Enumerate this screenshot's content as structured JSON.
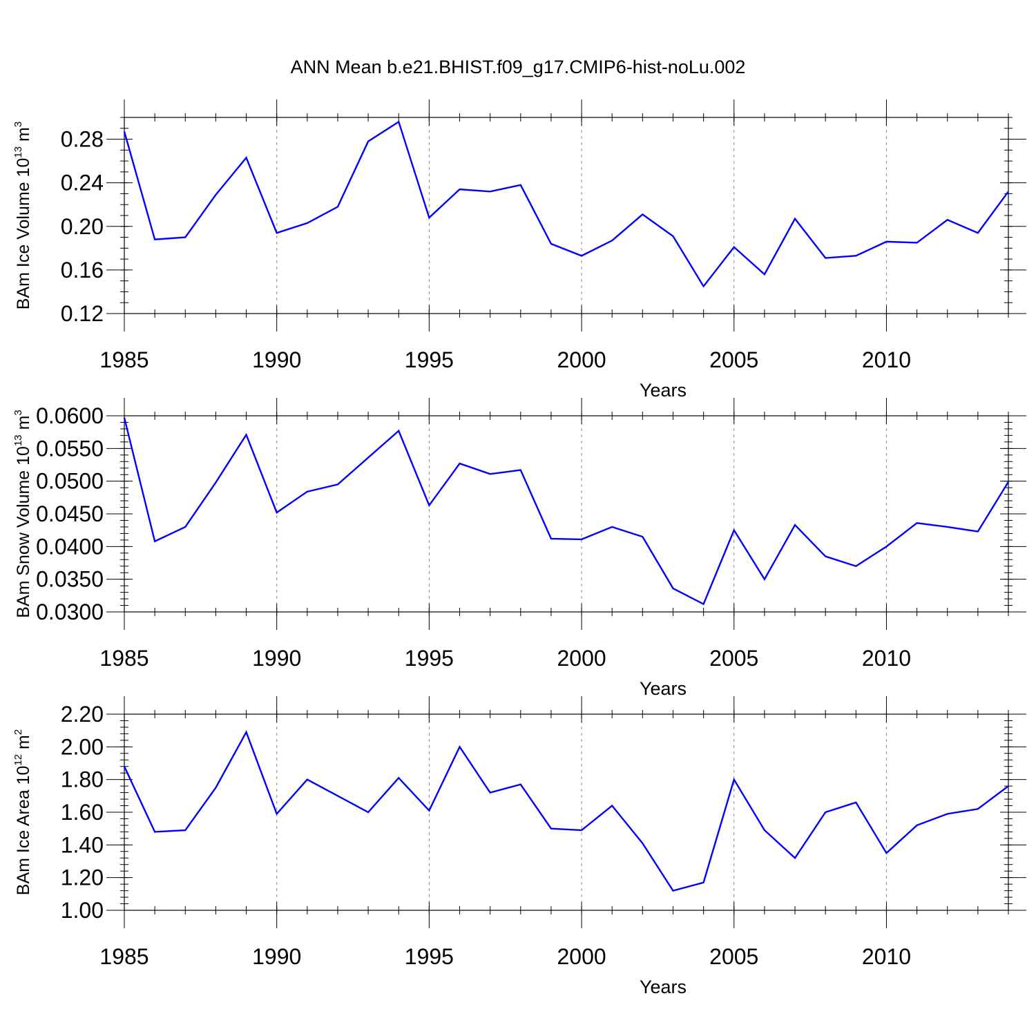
{
  "title": "ANN Mean b.e21.BHIST.f09_g17.CMIP6-hist-noLu.002",
  "colors": {
    "line": "#0000ff",
    "axis": "#000000",
    "grid": "#888888"
  },
  "chart_data": [
    {
      "type": "line",
      "title": "ANN Mean b.e21.BHIST.f09_g17.CMIP6-hist-noLu.002",
      "xlabel": "Years",
      "ylabel": {
        "text": "BAm Ice Volume 10",
        "exp": "13",
        "unit": " m",
        "unit_exp": "3"
      },
      "xlim": [
        1985,
        2014
      ],
      "ylim": [
        0.12,
        0.3
      ],
      "xticks": [
        "1985",
        "1990",
        "1995",
        "2000",
        "2005",
        "2010"
      ],
      "yticks": [
        "0.12",
        "0.16",
        "0.20",
        "0.24",
        "0.28"
      ],
      "grid": "vertical dashed at major x ticks",
      "series": [
        {
          "color": "#0000ff",
          "x": [
            1985,
            1986,
            1987,
            1988,
            1989,
            1990,
            1991,
            1992,
            1993,
            1994,
            1995,
            1996,
            1997,
            1998,
            1999,
            2000,
            2001,
            2002,
            2003,
            2004,
            2005,
            2006,
            2007,
            2008,
            2009,
            2010,
            2011,
            2012,
            2013,
            2014
          ],
          "values": [
            0.287,
            0.188,
            0.19,
            0.229,
            0.263,
            0.194,
            0.203,
            0.218,
            0.278,
            0.296,
            0.208,
            0.234,
            0.232,
            0.238,
            0.184,
            0.173,
            0.187,
            0.211,
            0.191,
            0.145,
            0.181,
            0.156,
            0.207,
            0.171,
            0.173,
            0.186,
            0.185,
            0.206,
            0.194,
            0.232
          ]
        }
      ]
    },
    {
      "type": "line",
      "xlabel": "Years",
      "ylabel": {
        "text": "BAm Snow Volume 10",
        "exp": "13",
        "unit": " m",
        "unit_exp": "3"
      },
      "xlim": [
        1985,
        2014
      ],
      "ylim": [
        0.03,
        0.06
      ],
      "xticks": [
        "1985",
        "1990",
        "1995",
        "2000",
        "2005",
        "2010"
      ],
      "yticks": [
        "0.0300",
        "0.0350",
        "0.0400",
        "0.0450",
        "0.0500",
        "0.0550",
        "0.0600"
      ],
      "grid": "vertical dashed at major x ticks",
      "series": [
        {
          "color": "#0000ff",
          "x": [
            1985,
            1986,
            1987,
            1988,
            1989,
            1990,
            1991,
            1992,
            1993,
            1994,
            1995,
            1996,
            1997,
            1998,
            1999,
            2000,
            2001,
            2002,
            2003,
            2004,
            2005,
            2006,
            2007,
            2008,
            2009,
            2010,
            2011,
            2012,
            2013,
            2014
          ],
          "values": [
            0.0597,
            0.0408,
            0.043,
            0.0498,
            0.0571,
            0.0452,
            0.0484,
            0.0495,
            0.0536,
            0.0577,
            0.0463,
            0.0527,
            0.0511,
            0.0517,
            0.0412,
            0.0411,
            0.043,
            0.0415,
            0.0336,
            0.0312,
            0.0425,
            0.035,
            0.0433,
            0.0385,
            0.037,
            0.04,
            0.0436,
            0.043,
            0.0423,
            0.0499
          ]
        }
      ]
    },
    {
      "type": "line",
      "xlabel": "Years",
      "ylabel": {
        "text": "BAm Ice Area 10",
        "exp": "12",
        "unit": " m",
        "unit_exp": "2"
      },
      "xlim": [
        1985,
        2014
      ],
      "ylim": [
        1.0,
        2.2
      ],
      "xticks": [
        "1985",
        "1990",
        "1995",
        "2000",
        "2005",
        "2010"
      ],
      "yticks": [
        "1.00",
        "1.20",
        "1.40",
        "1.60",
        "1.80",
        "2.00",
        "2.20"
      ],
      "grid": "vertical dashed at major x ticks",
      "series": [
        {
          "color": "#0000ff",
          "x": [
            1985,
            1986,
            1987,
            1988,
            1989,
            1990,
            1991,
            1992,
            1993,
            1994,
            1995,
            1996,
            1997,
            1998,
            1999,
            2000,
            2001,
            2002,
            2003,
            2004,
            2005,
            2006,
            2007,
            2008,
            2009,
            2010,
            2011,
            2012,
            2013,
            2014
          ],
          "values": [
            1.88,
            1.48,
            1.49,
            1.75,
            2.09,
            1.59,
            1.8,
            1.7,
            1.6,
            1.81,
            1.61,
            2.0,
            1.72,
            1.77,
            1.5,
            1.49,
            1.64,
            1.41,
            1.12,
            1.17,
            1.8,
            1.49,
            1.32,
            1.6,
            1.66,
            1.35,
            1.52,
            1.59,
            1.62,
            1.76
          ]
        }
      ]
    }
  ]
}
